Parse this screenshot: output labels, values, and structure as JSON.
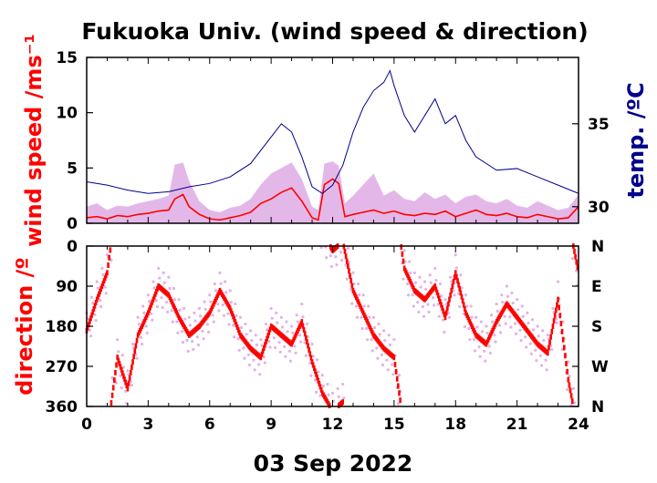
{
  "title": "Fukuoka Univ. (wind speed & direction)",
  "date_label": "03 Sep 2022",
  "colors": {
    "speed": "#ff0000",
    "speed_max": "#d9a0e0",
    "temp": "#00008b",
    "dir": "#ff0000",
    "dir_max": "#d9a0e0",
    "axis": "#000000"
  },
  "chart_data": [
    {
      "type": "line",
      "name": "wind speed & temperature",
      "ylabel": "wind speed /ms⁻¹",
      "y2label": "temp. /ºC",
      "xlim": [
        0,
        24
      ],
      "ylim": [
        0,
        15
      ],
      "y2lim": [
        29,
        39
      ],
      "x_ticks": [
        "0",
        "3",
        "6",
        "9",
        "12",
        "15",
        "18",
        "21",
        "24"
      ],
      "y_ticks": [
        "0",
        "5",
        "10",
        "15"
      ],
      "y2_ticks": [
        "30",
        "35"
      ],
      "series": [
        {
          "key": "speed",
          "x": [
            0,
            0.5,
            1,
            1.5,
            2,
            2.5,
            3,
            3.5,
            4,
            4.3,
            4.7,
            5,
            5.5,
            6,
            6.5,
            7,
            7.5,
            8,
            8.5,
            9,
            9.5,
            10,
            10.5,
            11,
            11.3,
            11.6,
            12,
            12.3,
            12.6,
            13,
            13.5,
            14,
            14.5,
            15,
            15.5,
            16,
            16.5,
            17,
            17.5,
            18,
            18.5,
            19,
            19.5,
            20,
            20.5,
            21,
            21.5,
            22,
            22.5,
            23,
            23.5,
            24
          ],
          "values": [
            0.5,
            0.6,
            0.4,
            0.7,
            0.6,
            0.8,
            0.9,
            1.1,
            1.2,
            2.2,
            2.6,
            1.5,
            0.8,
            0.4,
            0.3,
            0.5,
            0.7,
            1.0,
            1.8,
            2.2,
            2.8,
            3.2,
            2.0,
            0.5,
            0.3,
            3.5,
            4.0,
            3.6,
            0.6,
            0.8,
            1.0,
            1.2,
            0.9,
            1.1,
            0.8,
            0.7,
            0.9,
            0.8,
            1.1,
            0.6,
            0.9,
            1.2,
            0.8,
            0.7,
            0.9,
            0.6,
            0.5,
            0.8,
            0.6,
            0.4,
            0.5,
            1.5
          ]
        },
        {
          "key": "speed_max",
          "x": [
            0,
            0.5,
            1,
            1.5,
            2,
            2.5,
            3,
            3.5,
            4,
            4.3,
            4.7,
            5,
            5.5,
            6,
            6.5,
            7,
            7.5,
            8,
            8.5,
            9,
            9.5,
            10,
            10.5,
            11,
            11.3,
            11.6,
            12,
            12.3,
            12.6,
            13,
            13.5,
            14,
            14.5,
            15,
            15.5,
            16,
            16.5,
            17,
            17.5,
            18,
            18.5,
            19,
            19.5,
            20,
            20.5,
            21,
            21.5,
            22,
            22.5,
            23,
            23.5,
            24
          ],
          "values": [
            1.5,
            1.8,
            1.2,
            1.6,
            1.5,
            1.8,
            2.0,
            2.2,
            2.5,
            5.3,
            5.5,
            3.8,
            2.0,
            1.2,
            1.0,
            1.4,
            1.6,
            2.2,
            3.5,
            4.5,
            5.0,
            5.5,
            4.0,
            1.5,
            1.2,
            5.4,
            5.6,
            5.2,
            1.8,
            2.5,
            3.5,
            4.5,
            2.5,
            3.0,
            2.2,
            2.0,
            2.8,
            2.2,
            2.6,
            1.8,
            2.4,
            2.6,
            2.0,
            1.8,
            2.2,
            1.6,
            1.4,
            2.0,
            1.6,
            1.2,
            1.4,
            2.6
          ]
        },
        {
          "key": "temp",
          "axis": "y2",
          "x": [
            0,
            1,
            2,
            3,
            4,
            5,
            6,
            7,
            8,
            9,
            9.5,
            10,
            10.5,
            11,
            11.5,
            12,
            12.5,
            13,
            13.5,
            14,
            14.5,
            14.8,
            15,
            15.5,
            16,
            16.5,
            17,
            17.5,
            18,
            18.5,
            19,
            20,
            21,
            22,
            23,
            24
          ],
          "values": [
            31.5,
            31.3,
            31.0,
            30.8,
            30.9,
            31.2,
            31.4,
            31.8,
            32.6,
            34.2,
            35.0,
            34.5,
            33.0,
            31.2,
            30.8,
            31.3,
            32.5,
            34.5,
            36.0,
            37.0,
            37.5,
            38.2,
            37.3,
            35.5,
            34.5,
            35.5,
            36.5,
            35.0,
            35.5,
            34.0,
            33.0,
            32.2,
            32.3,
            31.8,
            31.3,
            30.8
          ]
        }
      ]
    },
    {
      "type": "scatter",
      "name": "wind direction",
      "ylabel": "direction /º",
      "xlabel": "03 Sep 2022",
      "xlim": [
        0,
        24
      ],
      "ylim": [
        360,
        0
      ],
      "x_ticks": [
        "0",
        "3",
        "6",
        "9",
        "12",
        "15",
        "18",
        "21",
        "24"
      ],
      "y_ticks": [
        "0",
        "90",
        "180",
        "270",
        "360"
      ],
      "y2_ticks": [
        "N",
        "E",
        "S",
        "W",
        "N"
      ],
      "series": [
        {
          "key": "dir",
          "x": [
            0,
            0.5,
            1,
            1.5,
            2,
            2.5,
            3,
            3.5,
            4,
            4.5,
            5,
            5.5,
            6,
            6.5,
            7,
            7.5,
            8,
            8.5,
            9,
            9.5,
            10,
            10.5,
            11,
            11.5,
            12,
            12.5,
            13,
            13.5,
            14,
            14.5,
            15,
            15.5,
            16,
            16.5,
            17,
            17.5,
            18,
            18.5,
            19,
            19.5,
            20,
            20.5,
            21,
            21.5,
            22,
            22.5,
            23,
            23.5,
            24
          ],
          "values": [
            190,
            120,
            60,
            250,
            320,
            200,
            150,
            90,
            110,
            160,
            200,
            180,
            150,
            100,
            140,
            200,
            230,
            250,
            180,
            200,
            220,
            170,
            260,
            330,
            10,
            350,
            100,
            150,
            200,
            230,
            250,
            50,
            100,
            120,
            90,
            160,
            60,
            150,
            200,
            220,
            170,
            130,
            160,
            190,
            220,
            240,
            120,
            300,
            60
          ]
        }
      ]
    }
  ]
}
